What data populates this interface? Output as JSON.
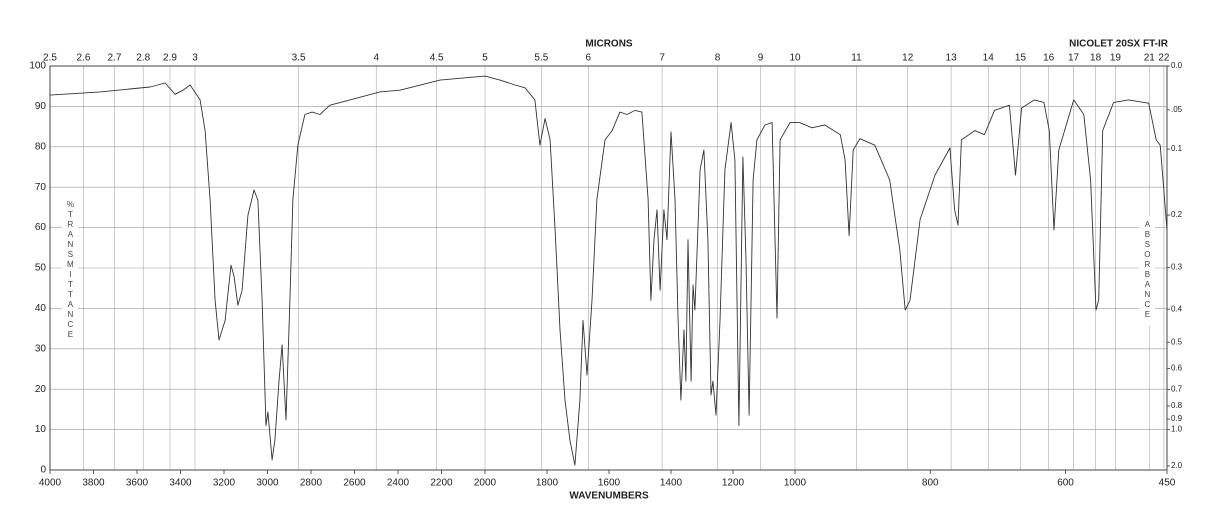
{
  "chart_data": {
    "type": "line",
    "title": "NICOLET 20SX FT-IR",
    "x_label": "WAVENUMBERS",
    "x2_label": "MICRONS",
    "y_label": "%TRANSMITTANCE",
    "y2_label": "ABSORBANCE",
    "xlim": [
      4000,
      450
    ],
    "x_breaks": [
      2000,
      1000
    ],
    "xticks": [
      4000,
      3800,
      3600,
      3400,
      3200,
      3000,
      2800,
      2600,
      2400,
      2200,
      2000,
      1800,
      1600,
      1400,
      1200,
      1000,
      800,
      600,
      450
    ],
    "x2ticks": [
      2.5,
      2.6,
      2.7,
      2.8,
      2.9,
      3,
      3.5,
      4,
      4.5,
      5,
      5.5,
      6,
      7,
      8,
      9,
      10,
      11,
      12,
      13,
      14,
      15,
      16,
      17,
      18,
      19,
      21,
      22
    ],
    "ylim": [
      0,
      100
    ],
    "yticks": [
      0,
      10,
      20,
      30,
      40,
      50,
      60,
      70,
      80,
      90,
      100
    ],
    "y2_scale": "absorbance",
    "y2ticks": [
      {
        "value": 0,
        "label": "0.0"
      },
      {
        "value": 0.05,
        "label": ".05"
      },
      0.1,
      0.2,
      0.3,
      0.4,
      0.5,
      0.6,
      0.7,
      0.8,
      0.9,
      {
        "value": 1,
        "label": "1.0"
      },
      {
        "value": 2,
        "label": "2.0"
      }
    ],
    "grid": true,
    "series": [
      {
        "color": "#333333",
        "x": [
          4000,
          3770,
          3540,
          3471,
          3425,
          3389,
          3356,
          3310,
          3287,
          3264,
          3241,
          3223,
          3195,
          3168,
          3154,
          3136,
          3117,
          3090,
          3062,
          3044,
          3025,
          3007,
          2998,
          2979,
          2966,
          2947,
          2933,
          2915,
          2897,
          2883,
          2860,
          2828,
          2795,
          2759,
          2713,
          2621,
          2483,
          2391,
          2207,
          2000,
          1952,
          1903,
          1871,
          1839,
          1823,
          1806,
          1790,
          1774,
          1758,
          1742,
          1726,
          1710,
          1694,
          1684,
          1671,
          1655,
          1639,
          1613,
          1590,
          1565,
          1542,
          1516,
          1494,
          1474,
          1465,
          1455,
          1445,
          1435,
          1423,
          1413,
          1400,
          1387,
          1377,
          1368,
          1358,
          1352,
          1345,
          1335,
          1329,
          1323,
          1306,
          1294,
          1281,
          1271,
          1265,
          1255,
          1242,
          1226,
          1206,
          1194,
          1181,
          1168,
          1158,
          1148,
          1135,
          1123,
          1097,
          1074,
          1058,
          1048,
          1016,
          993,
          975,
          956,
          933,
          926,
          920,
          914,
          904,
          882,
          860,
          845,
          837,
          830,
          815,
          793,
          771,
          764,
          759,
          754,
          734,
          720,
          705,
          683,
          674,
          665,
          646,
          632,
          624,
          617,
          610,
          588,
          573,
          563,
          555,
          551,
          545,
          529,
          507,
          477,
          466,
          460,
          450
        ],
        "values": [
          92.8,
          93.6,
          94.8,
          95.8,
          93,
          94,
          95.3,
          91.6,
          84,
          66.8,
          42,
          32.2,
          37,
          50.7,
          48,
          40.8,
          44.5,
          63,
          69.3,
          66.8,
          42,
          11,
          14.4,
          2.5,
          7.4,
          22,
          31,
          12.4,
          42,
          67,
          80.5,
          88,
          88.6,
          88,
          90.3,
          91.6,
          93.6,
          94,
          96.5,
          97.5,
          96.5,
          95.3,
          94.6,
          91.6,
          80.4,
          87,
          81.7,
          59.4,
          34.7,
          17.3,
          7.4,
          1.2,
          17.3,
          37,
          23.5,
          42,
          67,
          81.7,
          84,
          88.6,
          88,
          89,
          88.6,
          67,
          42,
          57,
          64.4,
          44.5,
          64.4,
          57,
          83.7,
          67,
          37,
          17.3,
          34.7,
          22,
          57,
          22,
          45.8,
          39.6,
          74.3,
          79.2,
          57,
          18.6,
          22,
          13.6,
          37,
          74.3,
          86,
          76.7,
          11,
          77.5,
          52,
          13.6,
          71.8,
          81.7,
          85.4,
          86,
          37.6,
          81.7,
          86,
          86,
          84.7,
          85.4,
          83,
          76.7,
          58,
          79.2,
          82,
          80.4,
          71.8,
          54.5,
          39.6,
          42,
          62,
          73,
          79.7,
          64.4,
          60.6,
          81.7,
          84,
          83,
          89,
          90.3,
          73,
          89.6,
          91.6,
          91,
          84,
          59.4,
          79.2,
          91.6,
          88,
          71.8,
          39.6,
          42,
          84,
          91,
          91.6,
          90.8,
          81.7,
          80.4,
          59.4
        ]
      }
    ]
  }
}
